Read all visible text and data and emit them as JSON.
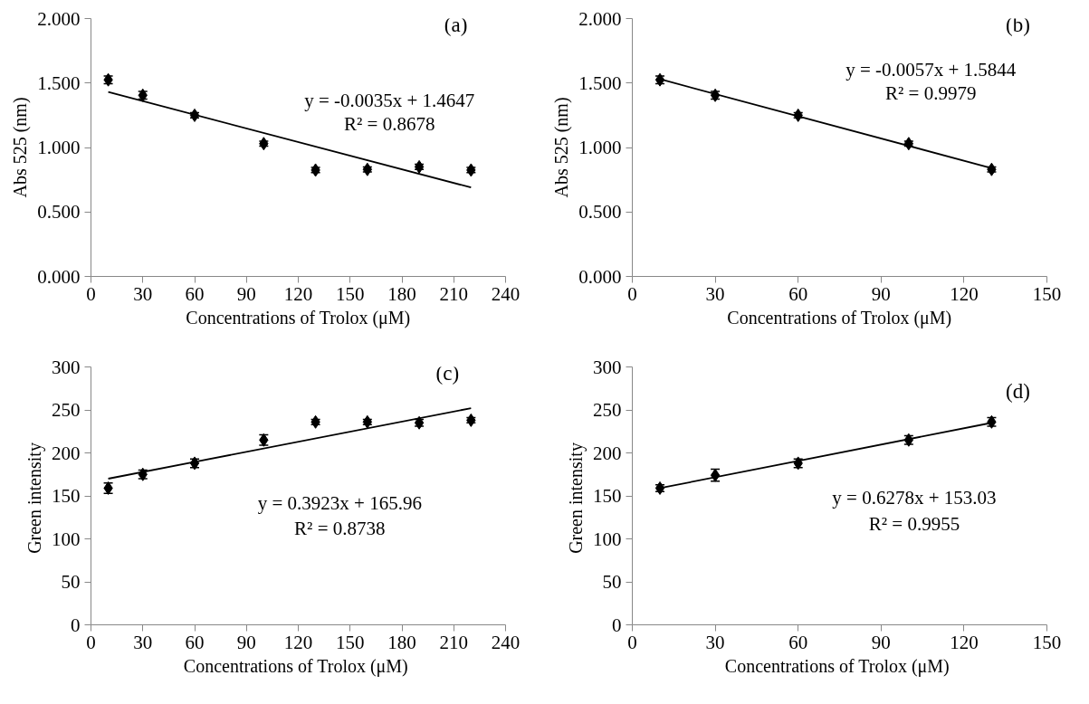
{
  "chart_data": [
    {
      "type": "scatter",
      "xlabel": "Concentrations of Trolox (μM)",
      "ylabel": "Abs 525 (nm)",
      "annotations": [
        "(a)",
        "y = -0.0035x + 1.4647",
        "R² = 0.8678"
      ],
      "grid": false,
      "xlim": [
        0,
        240
      ],
      "xticks": [
        0,
        30,
        60,
        90,
        120,
        150,
        180,
        210,
        240
      ],
      "ylim": [
        0,
        2
      ],
      "yticks": [
        {
          "value": 0,
          "label": "0.000"
        },
        {
          "value": 0.5,
          "label": "0.500"
        },
        {
          "value": 1,
          "label": "1.000"
        },
        {
          "value": 1.5,
          "label": "1.500"
        },
        {
          "value": 2,
          "label": "2.000"
        }
      ],
      "series": [
        {
          "marker": "diamond",
          "color": "#000000",
          "x": [
            10,
            30,
            60,
            100,
            130,
            160,
            190,
            220
          ],
          "values": [
            1.525,
            1.405,
            1.25,
            1.03,
            0.825,
            0.83,
            0.85,
            0.825
          ],
          "errors": [
            0.03,
            0.03,
            0.02,
            0.02,
            0.02,
            0.02,
            0.02,
            0.02
          ]
        },
        {
          "type": "line",
          "color": "#000000",
          "x": [
            10,
            220
          ],
          "values": [
            1.43,
            0.69
          ]
        }
      ]
    },
    {
      "type": "scatter",
      "xlabel": "Concentrations of Trolox (μM)",
      "ylabel": "Abs 525 (nm)",
      "annotations": [
        "(b)",
        "y = -0.0057x + 1.5844",
        "R² = 0.9979"
      ],
      "grid": false,
      "xlim": [
        0,
        150
      ],
      "xticks": [
        0,
        30,
        60,
        90,
        120,
        150
      ],
      "ylim": [
        0,
        2
      ],
      "yticks": [
        {
          "value": 0,
          "label": "0.000"
        },
        {
          "value": 0.5,
          "label": "0.500"
        },
        {
          "value": 1,
          "label": "1.000"
        },
        {
          "value": 1.5,
          "label": "1.500"
        },
        {
          "value": 2,
          "label": "2.000"
        }
      ],
      "series": [
        {
          "marker": "diamond",
          "color": "#000000",
          "x": [
            10,
            30,
            60,
            100,
            130
          ],
          "values": [
            1.525,
            1.405,
            1.25,
            1.03,
            0.83
          ],
          "errors": [
            0.03,
            0.03,
            0.02,
            0.02,
            0.02
          ]
        },
        {
          "type": "line",
          "color": "#000000",
          "x": [
            10,
            130
          ],
          "values": [
            1.53,
            0.84
          ]
        }
      ]
    },
    {
      "type": "scatter",
      "xlabel": "Concentrations of  Trolox (μM)",
      "ylabel": "Green  intensity",
      "annotations": [
        "(c)",
        "y = 0.3923x + 165.96",
        "R² = 0.8738"
      ],
      "grid": false,
      "xlim": [
        0,
        240
      ],
      "xticks": [
        0,
        30,
        60,
        90,
        120,
        150,
        180,
        210,
        240
      ],
      "ylim": [
        0,
        300
      ],
      "yticks": [
        0,
        50,
        100,
        150,
        200,
        250,
        300
      ],
      "series": [
        {
          "marker": "diamond",
          "color": "#000000",
          "x": [
            10,
            30,
            60,
            100,
            130,
            160,
            190,
            220
          ],
          "values": [
            159,
            175,
            188,
            215,
            236,
            236,
            235,
            238
          ],
          "errors": [
            6,
            5,
            5,
            6,
            3,
            3,
            4,
            3
          ]
        },
        {
          "type": "line",
          "color": "#000000",
          "x": [
            10,
            220
          ],
          "values": [
            170,
            252
          ]
        }
      ]
    },
    {
      "type": "scatter",
      "xlabel": "Concentrations of  Trolox (μM)",
      "ylabel": "Green  intensity",
      "annotations": [
        "(d)",
        "y = 0.6278x + 153.03",
        "R² = 0.9955"
      ],
      "grid": false,
      "xlim": [
        0,
        150
      ],
      "xticks": [
        0,
        30,
        60,
        90,
        120,
        150
      ],
      "ylim": [
        0,
        300
      ],
      "yticks": [
        0,
        50,
        100,
        150,
        200,
        250,
        300
      ],
      "series": [
        {
          "marker": "diamond",
          "color": "#000000",
          "x": [
            10,
            30,
            60,
            100,
            130
          ],
          "values": [
            159,
            174,
            188,
            215,
            236
          ],
          "errors": [
            4,
            7,
            5,
            5,
            5
          ]
        },
        {
          "type": "line",
          "color": "#000000",
          "x": [
            10,
            130
          ],
          "values": [
            159,
            235
          ]
        }
      ]
    }
  ]
}
